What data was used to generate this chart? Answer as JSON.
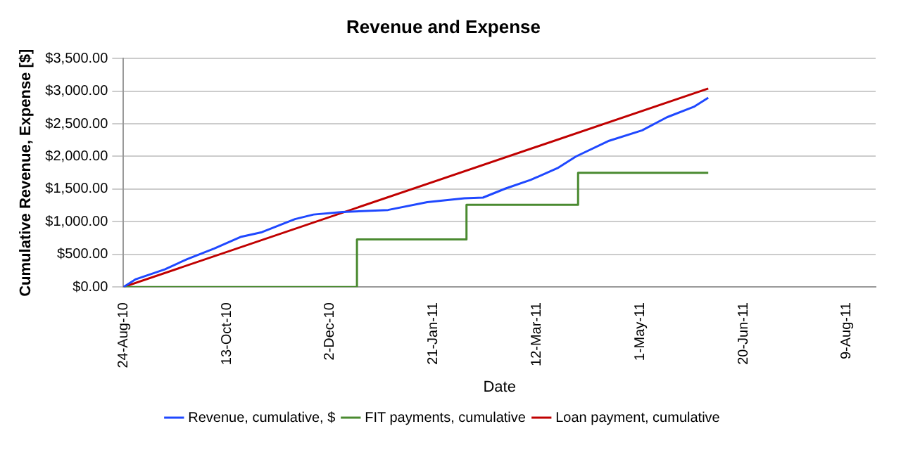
{
  "chart_data": {
    "type": "line",
    "title": "Revenue and Expense",
    "xlabel": "Date",
    "ylabel": "Cumulative Revenue, Expense [$]",
    "xlim": [
      "2010-08-24",
      "2011-08-23"
    ],
    "xticks": [
      {
        "value": "2010-08-24",
        "label": "24-Aug-10"
      },
      {
        "value": "2010-10-13",
        "label": "13-Oct-10"
      },
      {
        "value": "2010-12-02",
        "label": "2-Dec-10"
      },
      {
        "value": "2011-01-21",
        "label": "21-Jan-11"
      },
      {
        "value": "2011-03-12",
        "label": "12-Mar-11"
      },
      {
        "value": "2011-05-01",
        "label": "1-May-11"
      },
      {
        "value": "2011-06-20",
        "label": "20-Jun-11"
      },
      {
        "value": "2011-08-09",
        "label": "9-Aug-11"
      }
    ],
    "ylim": [
      0,
      3500
    ],
    "yticks": [
      {
        "value": 0,
        "label": "$0.00"
      },
      {
        "value": 500,
        "label": "$500.00"
      },
      {
        "value": 1000,
        "label": "$1,000.00"
      },
      {
        "value": 1500,
        "label": "$1,500.00"
      },
      {
        "value": 2000,
        "label": "$2,000.00"
      },
      {
        "value": 2500,
        "label": "$2,500.00"
      },
      {
        "value": 3000,
        "label": "$3,000.00"
      },
      {
        "value": 3500,
        "label": "$3,500.00"
      }
    ],
    "grid": "y",
    "legend": "bottom",
    "marker": "none",
    "line_style": "solid",
    "series": [
      {
        "name": "Revenue, cumulative, $",
        "color": "#1f48ff",
        "type": "line",
        "x": [
          "2010-08-24",
          "2010-08-30",
          "2010-09-13",
          "2010-09-24",
          "2010-10-07",
          "2010-10-20",
          "2010-10-30",
          "2010-11-15",
          "2010-11-24",
          "2010-12-08",
          "2010-12-30",
          "2011-01-18",
          "2011-02-05",
          "2011-02-14",
          "2011-02-25",
          "2011-03-09",
          "2011-03-22",
          "2011-03-31",
          "2011-04-16",
          "2011-05-02",
          "2011-05-14",
          "2011-05-27",
          "2011-06-03"
        ],
        "values": [
          0,
          120,
          270,
          430,
          590,
          770,
          840,
          1040,
          1110,
          1150,
          1180,
          1300,
          1360,
          1370,
          1510,
          1640,
          1820,
          2000,
          2240,
          2400,
          2600,
          2760,
          2900
        ]
      },
      {
        "name": "FIT payments, cumulative",
        "color": "#4a8a30",
        "type": "step",
        "x": [
          "2010-08-24",
          "2010-12-15",
          "2011-02-06",
          "2011-04-01",
          "2011-06-03"
        ],
        "values": [
          0,
          730,
          1260,
          1750,
          1750
        ]
      },
      {
        "name": "Loan payment, cumulative",
        "color": "#c00000",
        "type": "line",
        "x": [
          "2010-08-24",
          "2011-06-03"
        ],
        "values": [
          0,
          3040
        ]
      }
    ]
  }
}
